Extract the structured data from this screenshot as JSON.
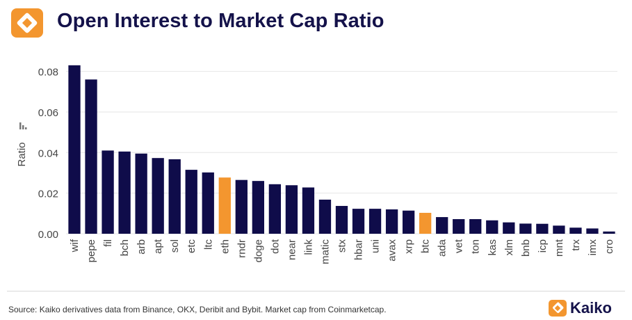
{
  "header": {
    "title": "Open Interest to Market Cap Ratio"
  },
  "colors": {
    "bar": "#0f0c4a",
    "highlight": "#f3962f",
    "title": "#14124a",
    "grid": "#e6e6e6",
    "axis_text": "#444444"
  },
  "icons": {
    "header_logo": "kaiko-logo-icon",
    "ylabel_glyph": "bar-chart-icon"
  },
  "chart_data": {
    "type": "bar",
    "title": "Open Interest to Market Cap Ratio",
    "xlabel": "",
    "ylabel": "Ratio",
    "ylim": [
      0,
      0.085
    ],
    "yticks": [
      "0.00",
      "0.02",
      "0.04",
      "0.06",
      "0.08"
    ],
    "ytick_values": [
      0,
      0.02,
      0.04,
      0.06,
      0.08
    ],
    "grid": true,
    "legend": "none",
    "categories": [
      "wif",
      "pepe",
      "fil",
      "bch",
      "arb",
      "apt",
      "sol",
      "etc",
      "ltc",
      "eth",
      "rndr",
      "doge",
      "dot",
      "near",
      "link",
      "matic",
      "stx",
      "hbar",
      "uni",
      "avax",
      "xrp",
      "btc",
      "ada",
      "vet",
      "ton",
      "kas",
      "xlm",
      "bnb",
      "icp",
      "mnt",
      "trx",
      "imx",
      "cro"
    ],
    "values": [
      0.083,
      0.076,
      0.041,
      0.0405,
      0.0395,
      0.0373,
      0.0367,
      0.0315,
      0.0302,
      0.0277,
      0.0265,
      0.026,
      0.0244,
      0.0239,
      0.0228,
      0.0168,
      0.0137,
      0.0123,
      0.0123,
      0.012,
      0.0114,
      0.0103,
      0.0082,
      0.0072,
      0.0072,
      0.0066,
      0.0056,
      0.005,
      0.0049,
      0.004,
      0.003,
      0.0026,
      0.0011
    ],
    "highlighted": [
      "eth",
      "btc"
    ]
  },
  "footer": {
    "source": "Source: Kaiko derivatives data from Binance, OKX, Deribit and Bybit. Market cap from Coinmarketcap.",
    "brand": "Kaiko"
  }
}
